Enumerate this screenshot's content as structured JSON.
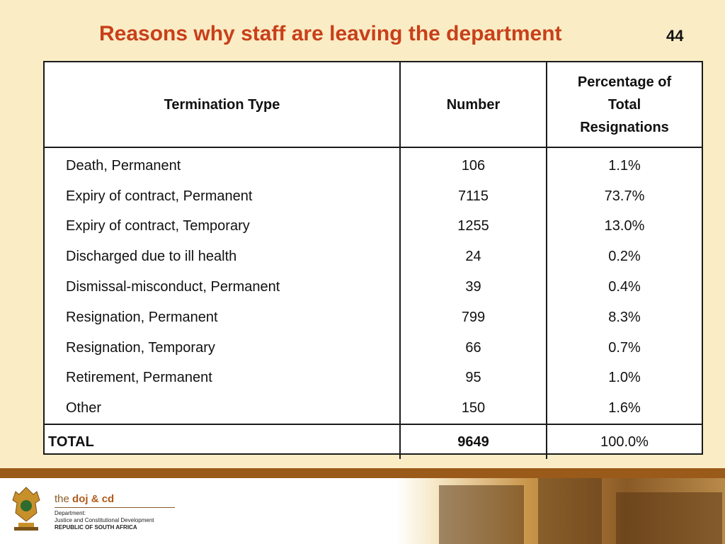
{
  "slide": {
    "title": "Reasons why staff are leaving the department",
    "page_number": "44"
  },
  "table": {
    "headers": {
      "type": "Termination Type",
      "number": "Number",
      "percentage_line1": "Percentage of",
      "percentage_line2": "Total",
      "percentage_line3": "Resignations"
    },
    "rows": [
      {
        "type": "Death, Permanent",
        "number": "106",
        "pct": "1.1%"
      },
      {
        "type": "Expiry of contract, Permanent",
        "number": "7115",
        "pct": "73.7%"
      },
      {
        "type": "Expiry of contract, Temporary",
        "number": "1255",
        "pct": "13.0%"
      },
      {
        "type": "Discharged due to ill health",
        "number": "24",
        "pct": "0.2%"
      },
      {
        "type": "Dismissal-misconduct, Permanent",
        "number": "39",
        "pct": "0.4%"
      },
      {
        "type": "Resignation, Permanent",
        "number": "799",
        "pct": "8.3%"
      },
      {
        "type": "Resignation, Temporary",
        "number": "66",
        "pct": "0.7%"
      },
      {
        "type": "Retirement, Permanent",
        "number": "95",
        "pct": "1.0%"
      },
      {
        "type": "Other",
        "number": "150",
        "pct": "1.6%"
      }
    ],
    "total": {
      "type": "TOTAL",
      "number": "9649",
      "pct": "100.0%"
    }
  },
  "footer": {
    "brand_prefix": "the",
    "brand_name": "doj & cd",
    "dept_line1": "Department:",
    "dept_line2": "Justice and Constitutional Development",
    "dept_line3": "REPUBLIC OF SOUTH AFRICA",
    "band_color": "#9a5a1a"
  },
  "colors": {
    "title": "#c8401a",
    "background": "#faedc6"
  }
}
